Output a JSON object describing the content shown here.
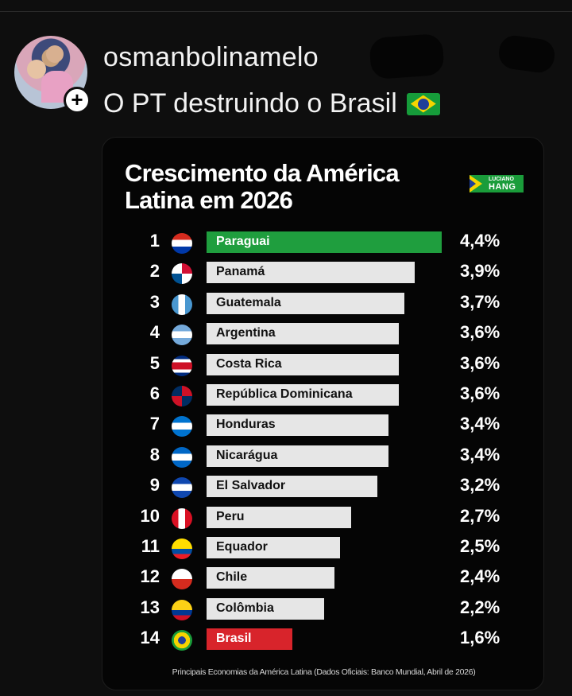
{
  "post": {
    "username": "osmanbolinamelo",
    "text": "O PT destruindo o Brasil",
    "follow_symbol": "+",
    "flag_icon": "brazil-flag-emoji"
  },
  "chart": {
    "brand_top": "LUCIANO",
    "brand_bottom": "HANG",
    "footnote": "Principais Economias da América Latina (Dados Oficiais: Banco Mundial, Abril de 2026)"
  },
  "chart_data": {
    "type": "bar",
    "title": "Crescimento da América Latina em 2026",
    "orientation": "horizontal",
    "categories": [
      "Paraguai",
      "Panamá",
      "Guatemala",
      "Argentina",
      "Costa Rica",
      "República Dominicana",
      "Honduras",
      "Nicarágua",
      "El Salvador",
      "Peru",
      "Equador",
      "Chile",
      "Colômbia",
      "Brasil"
    ],
    "ranks": [
      "1",
      "2",
      "3",
      "4",
      "5",
      "6",
      "7",
      "8",
      "9",
      "10",
      "11",
      "12",
      "13",
      "14"
    ],
    "values": [
      4.4,
      3.9,
      3.7,
      3.6,
      3.6,
      3.6,
      3.4,
      3.4,
      3.2,
      2.7,
      2.5,
      2.4,
      2.2,
      1.6
    ],
    "value_labels": [
      "4,4%",
      "3,9%",
      "3,7%",
      "3,6%",
      "3,6%",
      "3,6%",
      "3,4%",
      "3,4%",
      "3,2%",
      "2,7%",
      "2,5%",
      "2,4%",
      "2,2%",
      "1,6%"
    ],
    "colors": {
      "default": "#e6e6e6",
      "highlight_first": "#1f9e3e",
      "highlight_last": "#d8242b"
    },
    "flags": [
      "paraguay",
      "panama",
      "guatemala",
      "argentina",
      "costa-rica",
      "dominican-republic",
      "honduras",
      "nicaragua",
      "el-salvador",
      "peru",
      "ecuador",
      "chile",
      "colombia",
      "brazil"
    ]
  }
}
